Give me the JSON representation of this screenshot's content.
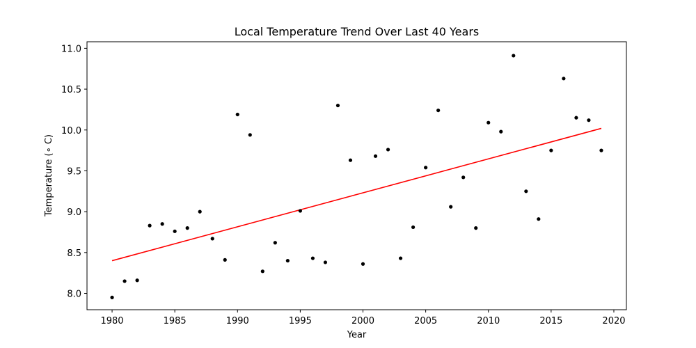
{
  "chart_data": {
    "type": "scatter",
    "title": "Local Temperature Trend Over Last 40 Years",
    "xlabel": "Year",
    "ylabel": "Temperature (∘ C)",
    "xlim": [
      1978,
      2021
    ],
    "ylim": [
      7.8,
      11.08
    ],
    "xticks": [
      1980,
      1985,
      1990,
      1995,
      2000,
      2005,
      2010,
      2015,
      2020
    ],
    "yticks": [
      8.0,
      8.5,
      9.0,
      9.5,
      10.0,
      10.5,
      11.0
    ],
    "grid": false,
    "point_color": "#000000",
    "x": [
      1980,
      1981,
      1982,
      1983,
      1984,
      1985,
      1986,
      1987,
      1988,
      1989,
      1990,
      1991,
      1992,
      1993,
      1994,
      1995,
      1996,
      1997,
      1998,
      1999,
      2000,
      2001,
      2002,
      2003,
      2004,
      2005,
      2006,
      2007,
      2008,
      2009,
      2010,
      2011,
      2012,
      2013,
      2014,
      2015,
      2016,
      2017,
      2018,
      2019
    ],
    "y": [
      7.95,
      8.15,
      8.16,
      8.83,
      8.85,
      8.76,
      8.8,
      9.0,
      8.67,
      8.41,
      10.19,
      9.94,
      8.27,
      8.62,
      8.4,
      9.01,
      8.43,
      8.38,
      10.3,
      9.63,
      8.36,
      9.68,
      9.76,
      8.43,
      8.81,
      9.54,
      10.24,
      9.06,
      9.42,
      8.8,
      10.09,
      9.98,
      10.91,
      9.25,
      8.91,
      9.75,
      10.63,
      10.15,
      10.12,
      9.75
    ],
    "trend_line": {
      "color": "#ff0000",
      "x": [
        1980,
        2019
      ],
      "y": [
        8.4,
        10.02
      ]
    }
  }
}
